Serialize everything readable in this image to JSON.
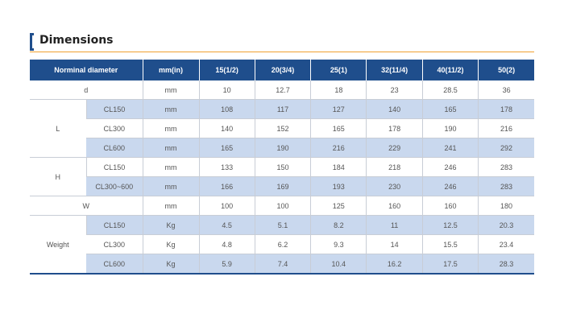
{
  "title": "Dimensions",
  "header": {
    "label": "Norminal diameter",
    "unit": "mm(in)",
    "sizes": [
      "15(1/2)",
      "20(3/4)",
      "25(1)",
      "32(11/4)",
      "40(11/2)",
      "50(2)"
    ]
  },
  "d": {
    "label": "d",
    "unit": "mm",
    "values": [
      "10",
      "12.7",
      "18",
      "23",
      "28.5",
      "36"
    ]
  },
  "L": {
    "label": "L",
    "rows": [
      {
        "cls": "CL150",
        "unit": "mm",
        "values": [
          "108",
          "117",
          "127",
          "140",
          "165",
          "178"
        ]
      },
      {
        "cls": "CL300",
        "unit": "mm",
        "values": [
          "140",
          "152",
          "165",
          "178",
          "190",
          "216"
        ]
      },
      {
        "cls": "CL600",
        "unit": "mm",
        "values": [
          "165",
          "190",
          "216",
          "229",
          "241",
          "292"
        ]
      }
    ]
  },
  "H": {
    "label": "H",
    "rows": [
      {
        "cls": "CL150",
        "unit": "mm",
        "values": [
          "133",
          "150",
          "184",
          "218",
          "246",
          "283"
        ]
      },
      {
        "cls": "CL300~600",
        "unit": "mm",
        "values": [
          "166",
          "169",
          "193",
          "230",
          "246",
          "283"
        ]
      }
    ]
  },
  "W": {
    "label": "W",
    "unit": "mm",
    "values": [
      "100",
      "100",
      "125",
      "160",
      "160",
      "180"
    ]
  },
  "Weight": {
    "label": "Weight",
    "rows": [
      {
        "cls": "CL150",
        "unit": "Kg",
        "values": [
          "4.5",
          "5.1",
          "8.2",
          "11",
          "12.5",
          "20.3"
        ]
      },
      {
        "cls": "CL300",
        "unit": "Kg",
        "values": [
          "4.8",
          "6.2",
          "9.3",
          "14",
          "15.5",
          "23.4"
        ]
      },
      {
        "cls": "CL600",
        "unit": "Kg",
        "values": [
          "5.9",
          "7.4",
          "10.4",
          "16.2",
          "17.5",
          "28.3"
        ]
      }
    ]
  }
}
